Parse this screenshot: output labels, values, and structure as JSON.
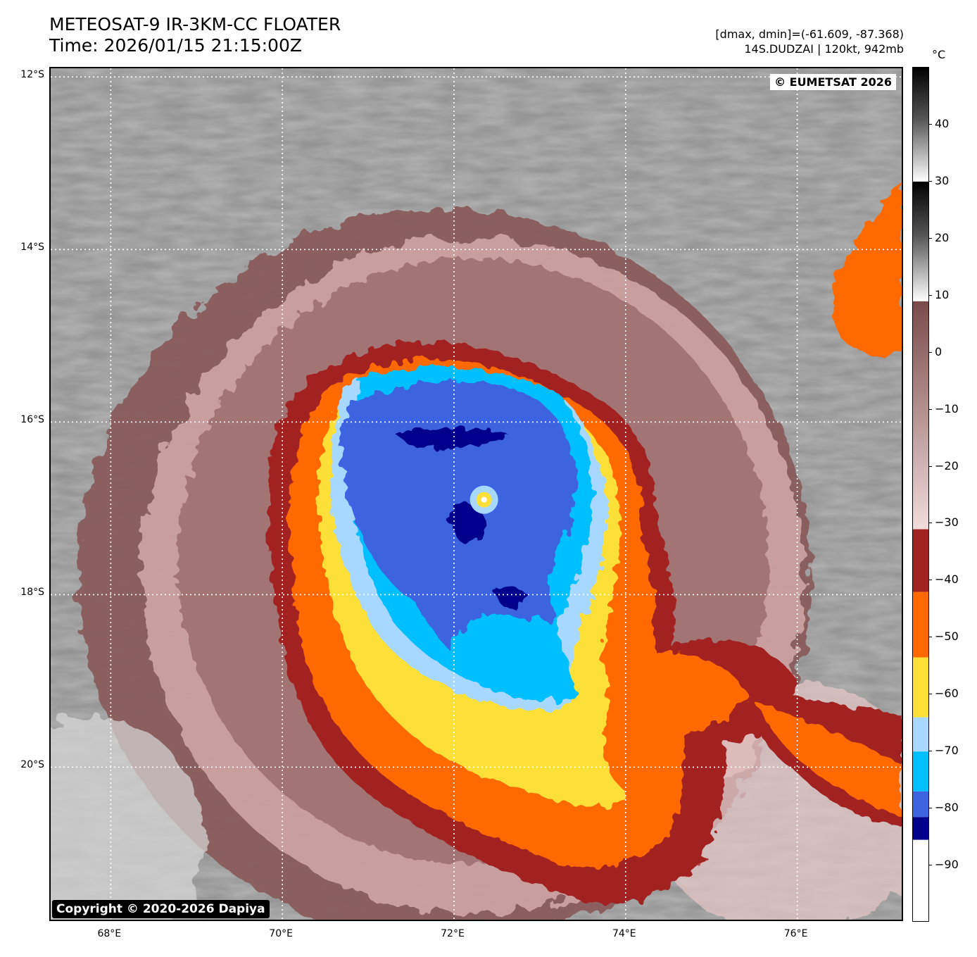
{
  "header": {
    "title_line1": "METEOSAT-9 IR-3KM-CC FLOATER",
    "title_line2": "Time: 2026/01/15 21:15:00Z",
    "dminmax": "[dmax, dmin]=(-61.609, -87.368)",
    "storm_info": "14S.DUDZAI | 120kt, 942mb"
  },
  "map": {
    "lat_labels": [
      "12°S",
      "14°S",
      "16°S",
      "18°S",
      "20°S"
    ],
    "lon_labels": [
      "68°E",
      "70°E",
      "72°E",
      "74°E",
      "76°E"
    ],
    "lat_range": [
      -21.8,
      -11.9
    ],
    "lon_range": [
      67.3,
      77.25
    ],
    "watermark_top": "© EUMETSAT 2026",
    "watermark_bottom": "Copyright © 2020-2026 Dapiya",
    "storm_center": {
      "lon": 72.35,
      "lat": -16.9
    }
  },
  "colorbar": {
    "unit": "°C",
    "ticks": [
      "40",
      "30",
      "20",
      "10",
      "0",
      "−10",
      "−20",
      "−30",
      "−40",
      "−50",
      "−60",
      "−70",
      "−80",
      "−90"
    ],
    "tick_values": [
      40,
      30,
      20,
      10,
      0,
      -10,
      -20,
      -30,
      -40,
      -50,
      -60,
      -70,
      -80,
      -90
    ],
    "range": [
      -100,
      50
    ],
    "segments": [
      {
        "from": 50,
        "to": 30,
        "color": "#1a1a1a"
      },
      {
        "from": 30,
        "to": 9,
        "color": "#9a9a9a"
      },
      {
        "from": 9,
        "to": -31,
        "color": "#8a5c5c"
      },
      {
        "from": -31,
        "to": -42,
        "color": "#a22420"
      },
      {
        "from": -42,
        "to": -53.5,
        "color": "#ff6a00"
      },
      {
        "from": -53.5,
        "to": -64,
        "color": "#fce038"
      },
      {
        "from": -64,
        "to": -70,
        "color": "#a8d8ff"
      },
      {
        "from": -70,
        "to": -77,
        "color": "#00bfff"
      },
      {
        "from": -77,
        "to": -81.5,
        "color": "#3c64e0"
      },
      {
        "from": -81.5,
        "to": -85.5,
        "color": "#00008c"
      },
      {
        "from": -85.5,
        "to": -100,
        "color": "#ffffff"
      }
    ]
  },
  "colors": {
    "cloud_gray": "#8c8c8c",
    "warm_brown": "#7a5050",
    "pink": "#d8b0b0",
    "dark_red": "#a22420",
    "orange": "#ff6a00",
    "yellow": "#fce038",
    "light_blue": "#a8d8ff",
    "cyan": "#00bfff",
    "royal_blue": "#3c64e0",
    "navy": "#00008c"
  }
}
